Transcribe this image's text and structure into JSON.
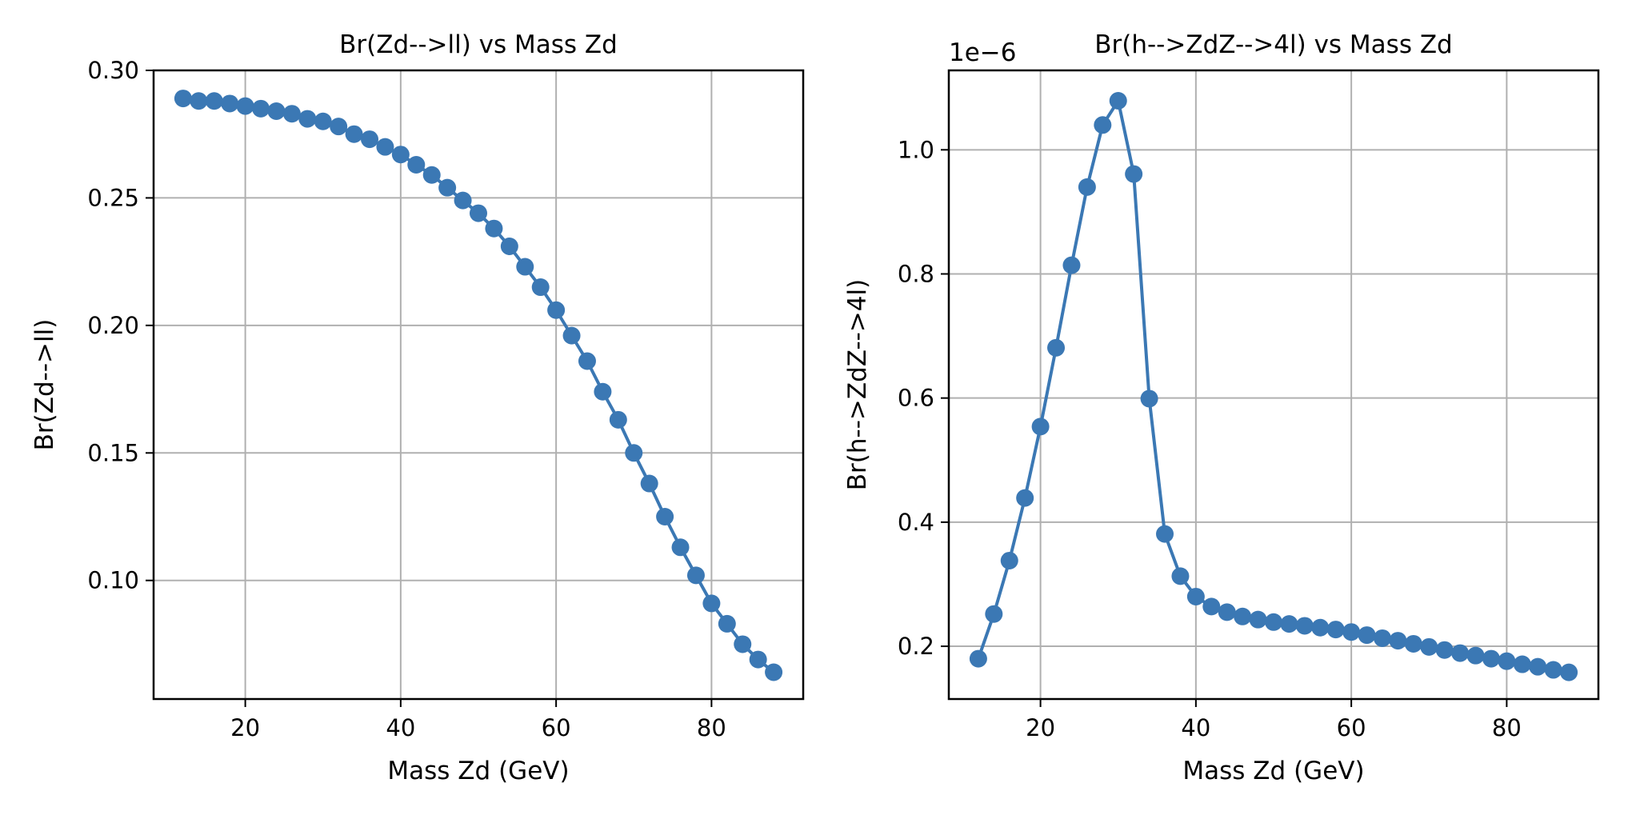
{
  "colors": {
    "series": "#3b78b4",
    "grid": "#b0b0b0",
    "axes": "#000000",
    "background": "#ffffff"
  },
  "chart_data": [
    {
      "type": "line",
      "title": "Br(Zd-->ll) vs Mass Zd",
      "xlabel": "Mass Zd (GeV)",
      "ylabel": "Br(Zd-->ll)",
      "xlim": [
        8.2,
        91.8
      ],
      "ylim": [
        0.0535,
        0.3
      ],
      "xticks": [
        20,
        40,
        60,
        80
      ],
      "xtick_labels": [
        "20",
        "40",
        "60",
        "80"
      ],
      "yticks": [
        0.1,
        0.15,
        0.2,
        0.25,
        0.3
      ],
      "ytick_labels": [
        "0.10",
        "0.15",
        "0.20",
        "0.25",
        "0.30"
      ],
      "offset_text": "",
      "grid": true,
      "markers": true,
      "series": [
        {
          "x": [
            12,
            14,
            16,
            18,
            20,
            22,
            24,
            26,
            28,
            30,
            32,
            34,
            36,
            38,
            40,
            42,
            44,
            46,
            48,
            50,
            52,
            54,
            56,
            58,
            60,
            62,
            64,
            66,
            68,
            70,
            72,
            74,
            76,
            78,
            80,
            82,
            84,
            86,
            88
          ],
          "values": [
            0.289,
            0.288,
            0.288,
            0.287,
            0.286,
            0.285,
            0.284,
            0.283,
            0.281,
            0.28,
            0.278,
            0.275,
            0.273,
            0.27,
            0.267,
            0.263,
            0.259,
            0.254,
            0.249,
            0.244,
            0.238,
            0.231,
            0.223,
            0.215,
            0.206,
            0.196,
            0.186,
            0.174,
            0.163,
            0.15,
            0.138,
            0.125,
            0.113,
            0.102,
            0.091,
            0.083,
            0.075,
            0.069,
            0.064
          ]
        }
      ]
    },
    {
      "type": "line",
      "title": "Br(h-->ZdZ-->4l) vs Mass Zd",
      "xlabel": "Mass Zd (GeV)",
      "ylabel": "Br(h-->ZdZ-->4l)",
      "xlim": [
        8.2,
        91.8
      ],
      "ylim": [
        0.115,
        1.128
      ],
      "xticks": [
        20,
        40,
        60,
        80
      ],
      "xtick_labels": [
        "20",
        "40",
        "60",
        "80"
      ],
      "yticks": [
        0.2,
        0.4,
        0.6,
        0.8,
        1.0
      ],
      "ytick_labels": [
        "0.2",
        "0.4",
        "0.6",
        "0.8",
        "1.0"
      ],
      "offset_text": "1e−6",
      "grid": true,
      "markers": true,
      "series": [
        {
          "x": [
            12,
            14,
            16,
            18,
            20,
            22,
            24,
            26,
            28,
            30,
            32,
            34,
            36,
            38,
            40,
            42,
            44,
            46,
            48,
            50,
            52,
            54,
            56,
            58,
            60,
            62,
            64,
            66,
            68,
            70,
            72,
            74,
            76,
            78,
            80,
            82,
            84,
            86,
            88
          ],
          "values": [
            0.18,
            0.252,
            0.338,
            0.439,
            0.554,
            0.681,
            0.814,
            0.94,
            1.04,
            1.079,
            0.961,
            0.599,
            0.381,
            0.313,
            0.28,
            0.264,
            0.255,
            0.248,
            0.243,
            0.239,
            0.236,
            0.233,
            0.23,
            0.227,
            0.223,
            0.218,
            0.213,
            0.209,
            0.204,
            0.199,
            0.194,
            0.189,
            0.185,
            0.18,
            0.176,
            0.171,
            0.167,
            0.162,
            0.158
          ]
        }
      ]
    }
  ]
}
